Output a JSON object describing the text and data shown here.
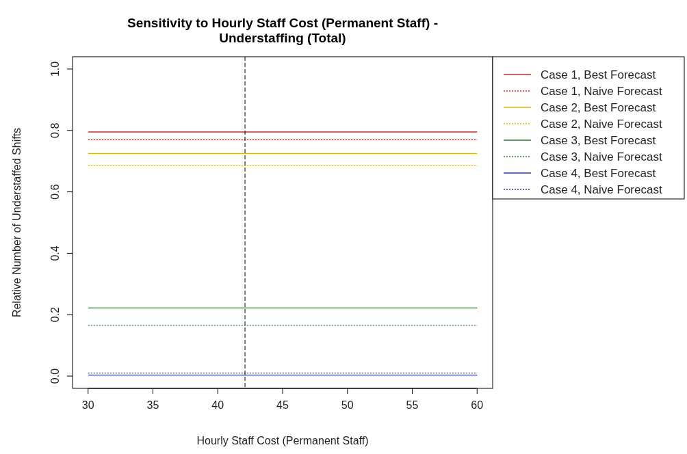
{
  "chart_data": {
    "type": "line",
    "title": "Sensitivity to Hourly Staff Cost (Permanent Staff) - Understaffing (Total)",
    "xlabel": "Hourly Staff Cost (Permanent Staff)",
    "ylabel": "Relative Number of Understaffed Shifts",
    "x": [
      30,
      60
    ],
    "series": [
      {
        "name": "Case 1, Best Forecast",
        "color": "#d62728",
        "values": [
          0.795,
          0.795
        ],
        "line_style": "solid"
      },
      {
        "name": "Case 1, Naive Forecast",
        "color": "#d62728",
        "values": [
          0.77,
          0.77
        ],
        "line_style": "dotted"
      },
      {
        "name": "Case 2, Best Forecast",
        "color": "#e8b400",
        "values": [
          0.725,
          0.725
        ],
        "line_style": "solid"
      },
      {
        "name": "Case 2, Naive Forecast",
        "color": "#e8b400",
        "values": [
          0.685,
          0.685
        ],
        "line_style": "dotted"
      },
      {
        "name": "Case 3, Best Forecast",
        "color": "#2e7d32",
        "values": [
          0.222,
          0.222
        ],
        "line_style": "solid"
      },
      {
        "name": "Case 3, Naive Forecast",
        "color": "#2e7d32",
        "values": [
          0.165,
          0.165
        ],
        "line_style": "dotted"
      },
      {
        "name": "Case 4, Best Forecast",
        "color": "#2c3aa8",
        "values": [
          0.003,
          0.003
        ],
        "line_style": "solid"
      },
      {
        "name": "Case 4, Naive Forecast",
        "color": "#2c3aa8",
        "values": [
          0.01,
          0.01
        ],
        "line_style": "dotted"
      }
    ],
    "xlim": [
      28.8,
      61.2
    ],
    "xticks": [
      30,
      35,
      40,
      45,
      50,
      55,
      60
    ],
    "ylim": [
      -0.04,
      1.04
    ],
    "yticks": [
      {
        "value": 0,
        "label": "0.0"
      },
      {
        "value": 0.2,
        "label": "0.2"
      },
      {
        "value": 0.4,
        "label": "0.4"
      },
      {
        "value": 0.6,
        "label": "0.6"
      },
      {
        "value": 0.8,
        "label": "0.8"
      },
      {
        "value": 1,
        "label": "1.0"
      }
    ],
    "ref_lines": [
      {
        "axis": "x",
        "value": 42.1,
        "color": "#000000",
        "line_style": "dashed"
      }
    ],
    "grid": false,
    "legend": "top right"
  }
}
